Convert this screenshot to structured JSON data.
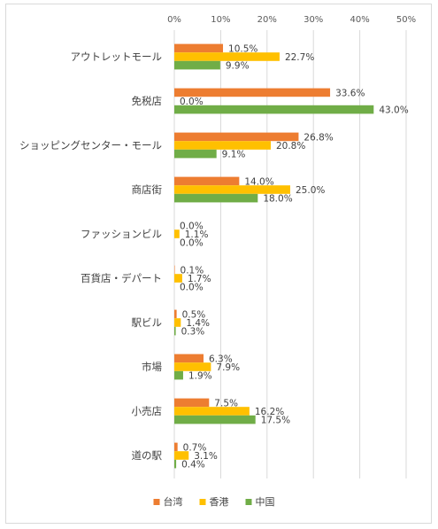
{
  "chart_data": {
    "type": "bar",
    "orientation": "horizontal",
    "categories": [
      "アウトレットモール",
      "免税店",
      "ショッピングセンター・モール",
      "商店街",
      "ファッションビル",
      "百貨店・デパート",
      "駅ビル",
      "市場",
      "小売店",
      "道の駅"
    ],
    "series": [
      {
        "name": "台湾",
        "color": "#ED7D31",
        "values": [
          10.5,
          33.6,
          26.8,
          14.0,
          0.0,
          0.1,
          0.5,
          6.3,
          7.5,
          0.7
        ]
      },
      {
        "name": "香港",
        "color": "#FFC000",
        "values": [
          22.7,
          0.0,
          20.8,
          25.0,
          1.1,
          1.7,
          1.4,
          7.9,
          16.2,
          3.1
        ]
      },
      {
        "name": "中国",
        "color": "#70AD47",
        "values": [
          9.9,
          43.0,
          9.1,
          18.0,
          0.0,
          0.0,
          0.3,
          1.9,
          17.5,
          0.4
        ]
      }
    ],
    "x_ticks": [
      "0%",
      "10%",
      "20%",
      "30%",
      "40%",
      "50%"
    ],
    "xlim": [
      0,
      50
    ],
    "axis_position": "top",
    "grid": true,
    "legend": "bottom",
    "title": "",
    "xlabel": "",
    "ylabel": ""
  }
}
